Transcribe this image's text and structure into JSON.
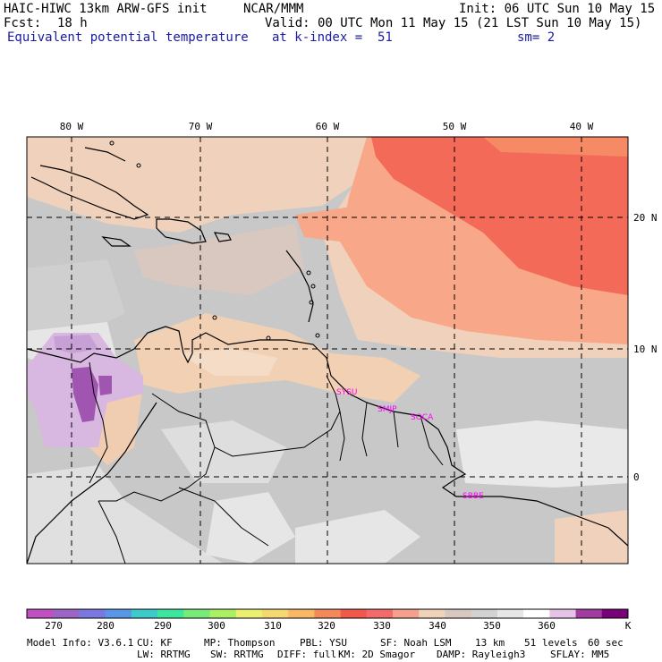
{
  "header": {
    "model_title": "HAIC-HIWC 13km ARW-GFS init",
    "org": "NCAR/MMM",
    "init": "Init: 06 UTC Sun 10 May 15",
    "fcst_label": "Fcst:",
    "fcst_value": "18 h",
    "valid": "Valid: 00 UTC Mon 11 May 15 (21 LST Sun 10 May 15)",
    "field": "Equivalent potential temperature",
    "level": "at k-index =  51",
    "smoothing": "sm= 2"
  },
  "map": {
    "longitude_labels": [
      "80 W",
      "70 W",
      "60 W",
      "50 W",
      "40 W"
    ],
    "latitude_labels": [
      "20 N",
      "10 N",
      "0"
    ],
    "stations": [
      "SYSU",
      "SMJP",
      "SOCA",
      "SBBE"
    ],
    "colors": {
      "gray": "#c8c8c8",
      "light": "#e6e6e6",
      "tan": "#f3cfb4",
      "salmon": "#f8a888",
      "red": "#f46a58",
      "lavender": "#d8b8e0",
      "violet": "#a055b0",
      "station": "#ff00ff"
    }
  },
  "colorbar": {
    "labels": [
      "270",
      "280",
      "290",
      "300",
      "310",
      "320",
      "330",
      "340",
      "350",
      "360"
    ],
    "unit": "K",
    "colors": [
      "#c050c0",
      "#9c64c4",
      "#7878e0",
      "#5a96e6",
      "#3ccaca",
      "#3ce69c",
      "#78ea78",
      "#aaf064",
      "#eaf070",
      "#f6d870",
      "#f8b868",
      "#f48a5c",
      "#f2584c",
      "#f46a6a",
      "#f4a08c",
      "#f0d2b8",
      "#d8c8c0",
      "#d2d2d2",
      "#e6e6e6",
      "#ffffff",
      "#e6c2e6",
      "#a03ca0",
      "#780078"
    ]
  },
  "model_info": {
    "line1": [
      "Model Info: V3.6.1",
      "CU: KF",
      "MP: Thompson",
      "PBL: YSU",
      "SF: Noah LSM",
      "13 km",
      "51 levels",
      "60 sec"
    ],
    "line2": [
      "LW: RRTMG",
      "SW: RRTMG",
      "DIFF: full",
      "KM: 2D Smagor",
      "DAMP: Rayleigh3",
      "SFLAY: MM5"
    ]
  }
}
